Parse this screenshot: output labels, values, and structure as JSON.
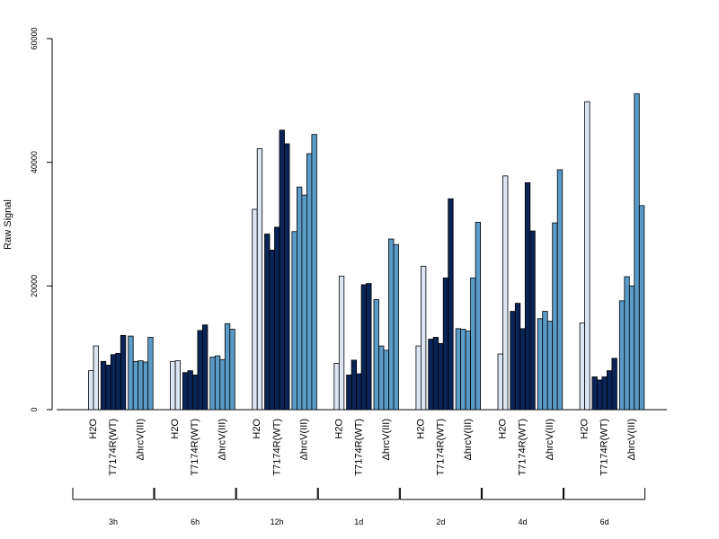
{
  "chart_data": {
    "type": "bar",
    "ylabel": "Raw Signal",
    "ylim": [
      0,
      60000
    ],
    "yticks": [
      0,
      20000,
      40000,
      60000
    ],
    "time_points": [
      "3h",
      "6h",
      "12h",
      "1d",
      "2d",
      "4d",
      "6d"
    ],
    "treatment_labels": [
      "H2O",
      "T7174R(WT)",
      "ΔhrcV(III)"
    ],
    "colors": {
      "H2O": "#dce6f2",
      "T7174R(WT)": "#0b2457",
      "ΔhrcV(III)": "#5b9bc8"
    },
    "groups": [
      {
        "time": "3h",
        "H2O": [
          6300,
          10300
        ],
        "T7174R(WT)": [
          7800,
          7200,
          8900,
          9100,
          12000
        ],
        "ΔhrcV(III)": [
          11900,
          7800,
          7900,
          7700,
          11700
        ]
      },
      {
        "time": "6h",
        "H2O": [
          7800,
          7900
        ],
        "T7174R(WT)": [
          6000,
          6300,
          5600,
          12800,
          13700
        ],
        "ΔhrcV(III)": [
          8500,
          8700,
          8100,
          13900,
          13000
        ]
      },
      {
        "time": "12h",
        "H2O": [
          32400,
          42200
        ],
        "T7174R(WT)": [
          28400,
          25800,
          29500,
          45200,
          43000
        ],
        "ΔhrcV(III)": [
          28800,
          36000,
          34700,
          41400,
          44500
        ]
      },
      {
        "time": "1d",
        "H2O": [
          7500,
          21600
        ],
        "T7174R(WT)": [
          5600,
          8000,
          5800,
          20200,
          20400
        ],
        "ΔhrcV(III)": [
          17800,
          10300,
          9600,
          27600,
          26700
        ]
      },
      {
        "time": "2d",
        "H2O": [
          10300,
          23200
        ],
        "T7174R(WT)": [
          11400,
          11700,
          10700,
          21300,
          34100
        ],
        "ΔhrcV(III)": [
          13100,
          13000,
          12700,
          21300,
          30300
        ]
      },
      {
        "time": "4d",
        "H2O": [
          9000,
          37800
        ],
        "T7174R(WT)": [
          15900,
          17200,
          13100,
          36700,
          28900
        ],
        "ΔhrcV(III)": [
          14700,
          15900,
          14300,
          30200,
          38800
        ]
      },
      {
        "time": "6d",
        "H2O": [
          14000,
          49800
        ],
        "T7174R(WT)": [
          5300,
          4800,
          5300,
          6300,
          8300
        ],
        "ΔhrcV(III)": [
          17600,
          21500,
          20000,
          51100,
          33000
        ]
      }
    ]
  }
}
